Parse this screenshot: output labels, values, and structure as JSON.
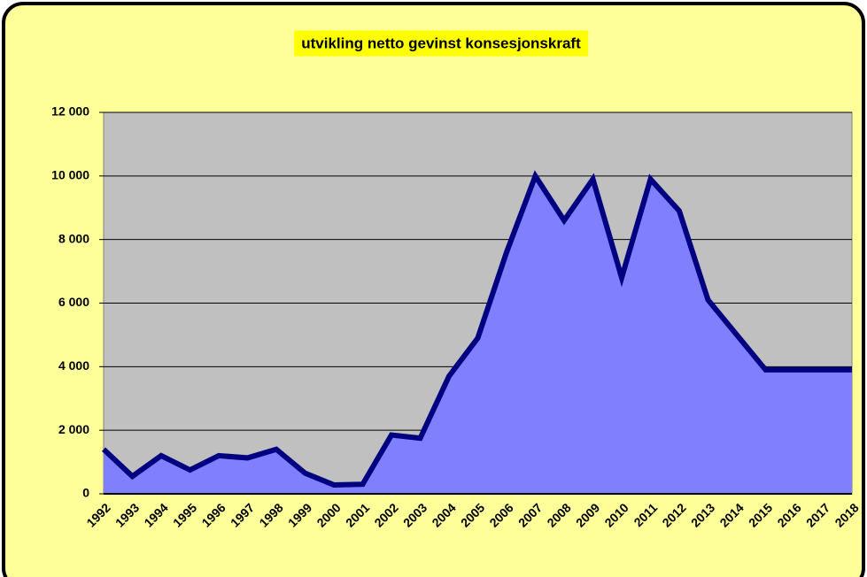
{
  "chart_data": {
    "type": "area",
    "title": "utvikling  netto gevinst konsesjonskraft",
    "categories": [
      "1992",
      "1993",
      "1994",
      "1995",
      "1996",
      "1997",
      "1998",
      "1999",
      "2000",
      "2001",
      "2002",
      "2003",
      "2004",
      "2005",
      "2006",
      "2007",
      "2008",
      "2009",
      "2010",
      "2011",
      "2012",
      "2013",
      "2014",
      "2015",
      "2016",
      "2017",
      "2018"
    ],
    "values": [
      1400,
      550,
      1200,
      750,
      1200,
      1130,
      1400,
      650,
      280,
      300,
      1850,
      1750,
      3700,
      4900,
      7600,
      10000,
      8600,
      9900,
      6800,
      9900,
      8900,
      6100,
      5000,
      3900,
      3900,
      3900,
      3900
    ],
    "color": "#8080ff",
    "line_color": "#000080",
    "plot_background": "#c0c0c0",
    "background": "#ffff99",
    "ylim": [
      0,
      12000
    ],
    "yticks": [
      0,
      {
        "value": 2000,
        "label": "2 000"
      },
      {
        "value": 4000,
        "label": "4 000"
      },
      {
        "value": 6000,
        "label": "6 000"
      },
      {
        "value": 8000,
        "label": "8 000"
      },
      {
        "value": 10000,
        "label": "10 000"
      },
      {
        "value": 12000,
        "label": "12 000"
      }
    ],
    "grid": true
  }
}
